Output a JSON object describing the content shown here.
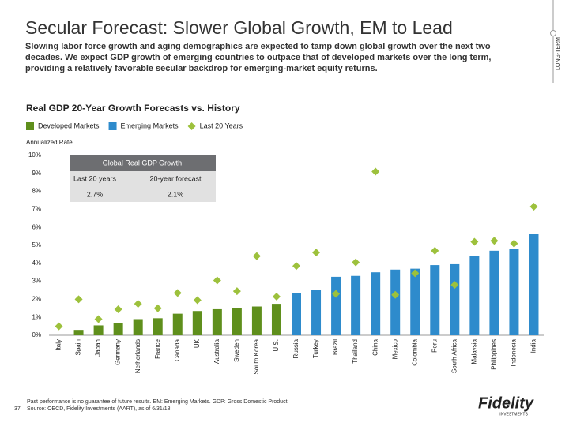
{
  "slide": {
    "title": "Secular Forecast: Slower Global Growth, EM to Lead",
    "subtitle": "Slowing labor force growth and aging demographics are expected to tamp down global growth over the next two decades. We expect GDP growth of emerging countries to outpace that of developed markets over the long term, providing a relatively favorable secular backdrop for emerging-market equity returns.",
    "side_tab": "LONG-TERM",
    "footnotes": [
      "Past performance is no guarantee of future results. EM: Emerging Markets. GDP: Gross Domestic Product.",
      "Source: OECD, Fidelity Investments (AART), as of 6/31/18."
    ],
    "page_number": "37",
    "logo": "Fidelity",
    "logo_sub": "INVESTMENTS"
  },
  "chart_data": {
    "type": "bar",
    "title": "Real GDP 20-Year Growth Forecasts vs. History",
    "y_label": "Annualized Rate",
    "categories": [
      "Italy",
      "Spain",
      "Japan",
      "Germany",
      "Netherlands",
      "France",
      "Canada",
      "UK",
      "Australia",
      "Sweden",
      "South Korea",
      "U.S.",
      "Russia",
      "Turkey",
      "Brazil",
      "Thailand",
      "China",
      "Mexico",
      "Colombia",
      "Peru",
      "South Africa",
      "Malaysia",
      "Philippines",
      "Indonesia",
      "India"
    ],
    "series": [
      {
        "name": "Developed Markets",
        "color": "#5f8f1c",
        "values": [
          0,
          0.3,
          0.55,
          0.7,
          0.9,
          0.95,
          1.2,
          1.35,
          1.45,
          1.5,
          1.6,
          1.75,
          null,
          null,
          null,
          null,
          null,
          null,
          null,
          null,
          null,
          null,
          null,
          null,
          null
        ]
      },
      {
        "name": "Emerging Markets",
        "color": "#2e8bcc",
        "values": [
          null,
          null,
          null,
          null,
          null,
          null,
          null,
          null,
          null,
          null,
          null,
          null,
          2.35,
          2.5,
          3.25,
          3.3,
          3.5,
          3.65,
          3.7,
          3.9,
          3.95,
          4.4,
          4.7,
          4.8,
          5.65
        ]
      },
      {
        "name": "Last 20 Years",
        "color": "#9dc13c",
        "marker": "diamond",
        "values": [
          0.5,
          2.0,
          0.9,
          1.45,
          1.75,
          1.5,
          2.35,
          1.95,
          3.05,
          2.45,
          4.4,
          2.15,
          3.85,
          4.6,
          2.3,
          4.05,
          9.1,
          2.25,
          3.45,
          4.7,
          2.8,
          5.2,
          5.25,
          5.1,
          7.15
        ]
      }
    ],
    "ylim": [
      0,
      10
    ],
    "yticks": [
      {
        "value": 0,
        "label": "0%"
      },
      {
        "value": 1,
        "label": "1%"
      },
      {
        "value": 2,
        "label": "2%"
      },
      {
        "value": 3,
        "label": "3%"
      },
      {
        "value": 4,
        "label": "4%"
      },
      {
        "value": 5,
        "label": "5%"
      },
      {
        "value": 6,
        "label": "6%"
      },
      {
        "value": 7,
        "label": "7%"
      },
      {
        "value": 8,
        "label": "8%"
      },
      {
        "value": 9,
        "label": "9%"
      },
      {
        "value": 10,
        "label": "10%"
      }
    ],
    "grid": false,
    "inset": {
      "title": "Global Real GDP Growth",
      "headers": [
        "Last 20 years",
        "20-year forecast"
      ],
      "values": [
        "2.7%",
        "2.1%"
      ]
    }
  }
}
